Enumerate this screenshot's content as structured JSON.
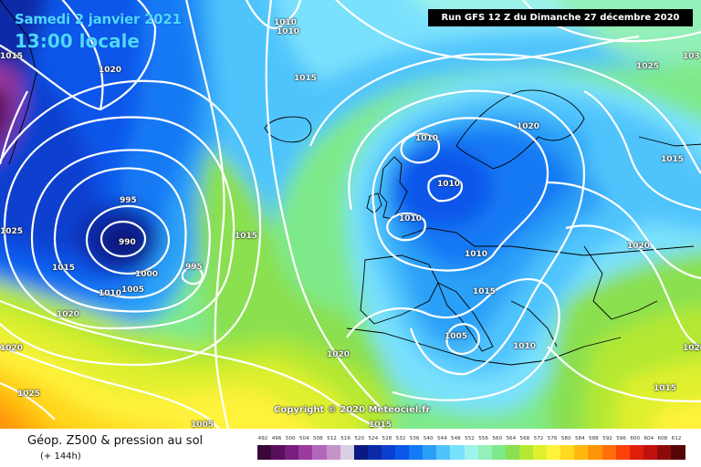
{
  "header": {
    "date": "Samedi 2 janvier 2021",
    "time": "13:00 locale",
    "run": "Run GFS 12 Z du Dimanche 27 décembre 2020"
  },
  "copyright": "Copyright © 2020 Meteociel.fr",
  "footer": {
    "title": "Géop. Z500 & pression au sol",
    "subtitle": "(+ 144h)"
  },
  "isobar_labels": [
    {
      "text": "1010"
    },
    {
      "text": "1010"
    },
    {
      "text": "1015"
    },
    {
      "text": "1020"
    },
    {
      "text": "1015"
    },
    {
      "text": "1025"
    },
    {
      "text": "103"
    },
    {
      "text": "1020"
    },
    {
      "text": "1015"
    },
    {
      "text": "1010"
    },
    {
      "text": "1010"
    },
    {
      "text": "995"
    },
    {
      "text": "990"
    },
    {
      "text": "1025"
    },
    {
      "text": "1015"
    },
    {
      "text": "1000"
    },
    {
      "text": "1010"
    },
    {
      "text": "1005"
    },
    {
      "text": "995"
    },
    {
      "text": "1015"
    },
    {
      "text": "1010"
    },
    {
      "text": "1010"
    },
    {
      "text": "1020"
    },
    {
      "text": "1015"
    },
    {
      "text": "1020"
    },
    {
      "text": "1005"
    },
    {
      "text": "1010"
    },
    {
      "text": "1020"
    },
    {
      "text": "1020"
    },
    {
      "text": "1025"
    },
    {
      "text": "1020"
    },
    {
      "text": "1015"
    },
    {
      "text": "1005"
    },
    {
      "text": "1015"
    }
  ],
  "legend": {
    "values": [
      "492",
      "496",
      "500",
      "504",
      "508",
      "512",
      "516",
      "520",
      "524",
      "528",
      "532",
      "536",
      "540",
      "544",
      "548",
      "552",
      "556",
      "560",
      "564",
      "568",
      "572",
      "576",
      "580",
      "584",
      "588",
      "592",
      "596",
      "600",
      "604",
      "608",
      "612"
    ],
    "colors": [
      "#3a0838",
      "#5a0f5c",
      "#7a1e7e",
      "#9b3ba0",
      "#b367ba",
      "#c593c9",
      "#dad0e6",
      "#0b1a82",
      "#0b2aa8",
      "#0a3fcf",
      "#0a57ea",
      "#1479f4",
      "#2aa0f8",
      "#4fc4fc",
      "#7ae1fd",
      "#9ef3ea",
      "#93f0b8",
      "#7ee98a",
      "#8ae050",
      "#b4e833",
      "#def02f",
      "#fff23a",
      "#ffd81f",
      "#ffb80e",
      "#ff9408",
      "#ff6e08",
      "#fa4108",
      "#e01e0c",
      "#c0100e",
      "#8e0a0a",
      "#580505"
    ]
  }
}
